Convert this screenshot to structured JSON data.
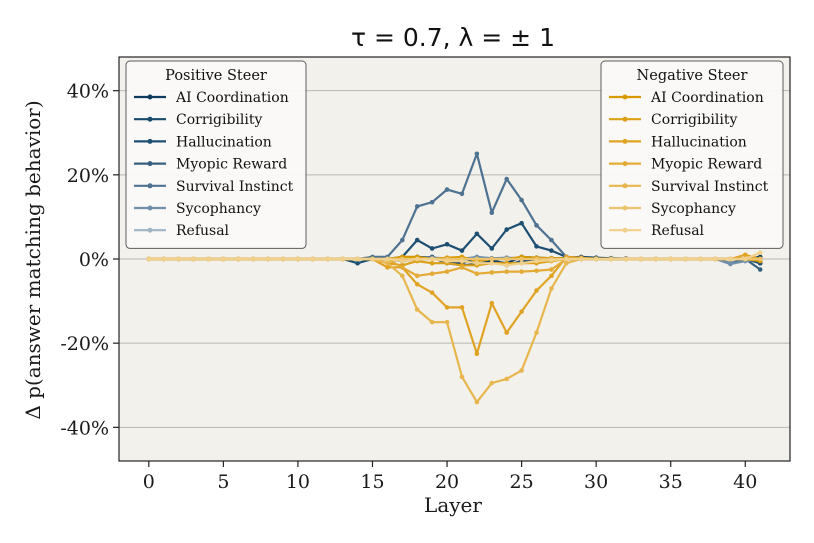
{
  "chart_data": {
    "type": "line",
    "title": "τ = 0.7, λ =  ± 1",
    "xlabel": "Layer",
    "ylabel": "Δ p(answer matching behavior)",
    "xlim": [
      -2,
      43
    ],
    "ylim": [
      -48,
      48
    ],
    "xticks": [
      0,
      5,
      10,
      15,
      20,
      25,
      30,
      35,
      40
    ],
    "yticks": [
      -40,
      -20,
      0,
      20,
      40
    ],
    "ytick_labels": [
      "-40%",
      "-20%",
      "0%",
      "20%",
      "40%"
    ],
    "grid": "horizontal",
    "x": [
      0,
      1,
      2,
      3,
      4,
      5,
      6,
      7,
      8,
      9,
      10,
      11,
      12,
      13,
      14,
      15,
      16,
      17,
      18,
      19,
      20,
      21,
      22,
      23,
      24,
      25,
      26,
      27,
      28,
      29,
      30,
      31,
      32,
      33,
      34,
      35,
      36,
      37,
      38,
      39,
      40,
      41
    ],
    "legends": [
      {
        "title": "Positive Steer",
        "position": "top-left"
      },
      {
        "title": "Negative Steer",
        "position": "top-right"
      }
    ],
    "series": [
      {
        "name": "AI Coordination",
        "group": "Positive Steer",
        "color": "#0d3b5e",
        "alpha": 1.0,
        "values": [
          0,
          0,
          0,
          0,
          0,
          0,
          0,
          0,
          0,
          0,
          0,
          0,
          0,
          0,
          0,
          0.2,
          0,
          -0.5,
          0.5,
          0.3,
          -1,
          -1.5,
          -1.2,
          -0.5,
          -1,
          0.5,
          0.3,
          0.2,
          0.2,
          0.2,
          0.1,
          0.1,
          0.1,
          0,
          0,
          0,
          0,
          0,
          0,
          0,
          0,
          0.5
        ]
      },
      {
        "name": "Corrigibility",
        "group": "Positive Steer",
        "color": "#184a6b",
        "alpha": 1.0,
        "values": [
          0,
          0,
          0,
          0,
          0,
          0,
          0,
          0,
          0,
          0,
          0,
          0,
          0,
          0,
          0,
          0,
          0,
          -0.5,
          0,
          0.5,
          -0.5,
          -1,
          0,
          0,
          -1.5,
          -0.5,
          0,
          0,
          0.3,
          0.5,
          0.3,
          0.2,
          0.1,
          0,
          0,
          0,
          0,
          0,
          0,
          0,
          0,
          -1
        ]
      },
      {
        "name": "Hallucination",
        "group": "Positive Steer",
        "color": "#1d4f73",
        "alpha": 1.0,
        "values": [
          0,
          0,
          0,
          0,
          0,
          0,
          0,
          0,
          0,
          0,
          0,
          0,
          0,
          0,
          -1,
          0,
          0,
          0.5,
          4.5,
          2.5,
          3.5,
          2,
          6,
          2.5,
          7,
          8.5,
          3,
          2,
          0.5,
          0.3,
          0.2,
          0.1,
          0.1,
          0,
          0,
          0,
          0,
          0,
          0,
          0,
          0,
          -1
        ]
      },
      {
        "name": "Myopic Reward",
        "group": "Positive Steer",
        "color": "#36607e",
        "alpha": 1.0,
        "values": [
          0,
          0,
          0,
          0,
          0,
          0,
          0,
          0,
          0,
          0,
          0,
          0,
          0,
          0,
          0,
          0,
          0,
          0,
          0,
          0,
          0,
          0,
          0,
          0,
          0,
          0,
          0,
          0,
          0,
          0,
          0,
          0,
          0,
          0,
          0,
          0,
          0,
          0,
          0,
          0,
          0,
          -2.5
        ]
      },
      {
        "name": "Survival Instinct",
        "group": "Positive Steer",
        "color": "#4e7291",
        "alpha": 1.0,
        "values": [
          0,
          0,
          0,
          0,
          0,
          0,
          0,
          0,
          0,
          0,
          0,
          0,
          0,
          0,
          0,
          0.5,
          0.5,
          4.5,
          12.5,
          13.5,
          16.5,
          15.5,
          25,
          11,
          19,
          14,
          8,
          4.5,
          0.5,
          0,
          0,
          0,
          0,
          0,
          0,
          0,
          0,
          0,
          0,
          -1,
          0,
          0
        ]
      },
      {
        "name": "Sycophancy",
        "group": "Positive Steer",
        "color": "#6f8fab",
        "alpha": 1.0,
        "values": [
          0,
          0,
          0,
          0,
          0,
          0,
          0,
          0,
          0,
          0,
          0,
          0,
          0,
          0,
          0,
          0,
          0,
          0,
          0.2,
          0.3,
          0.2,
          0,
          0.5,
          0.2,
          0.3,
          0.2,
          0,
          0,
          0,
          0,
          0,
          0,
          0,
          0,
          0,
          0,
          0,
          0,
          0,
          -1.2,
          -0.5,
          0
        ]
      },
      {
        "name": "Refusal",
        "group": "Positive Steer",
        "color": "#9fb4c7",
        "alpha": 1.0,
        "values": [
          0,
          0,
          0,
          0,
          0,
          0,
          0,
          0,
          0,
          0,
          0,
          0,
          0,
          0,
          0,
          0,
          0,
          0,
          0,
          0,
          0,
          0,
          0,
          0,
          0,
          0,
          0,
          0,
          0,
          0,
          0,
          0,
          0,
          0,
          0,
          0,
          0,
          0,
          0,
          0,
          0,
          0
        ]
      },
      {
        "name": "AI Coordination",
        "group": "Negative Steer",
        "color": "#d99a05",
        "alpha": 1.0,
        "values": [
          0,
          0,
          0,
          0,
          0,
          0,
          0,
          0,
          0,
          0,
          0,
          0,
          0,
          0,
          0,
          0,
          0,
          0.5,
          0.5,
          0,
          0.3,
          0.5,
          -0.5,
          0,
          0,
          0.5,
          0.3,
          0.2,
          0.2,
          0.2,
          0.1,
          0,
          0,
          0,
          0,
          0,
          0,
          0,
          0,
          0,
          0,
          -0.5
        ]
      },
      {
        "name": "Corrigibility",
        "group": "Negative Steer",
        "color": "#dca016",
        "alpha": 1.0,
        "values": [
          0,
          0,
          0,
          0,
          0,
          0,
          0,
          0,
          0,
          0,
          0,
          0,
          0,
          0,
          0,
          0,
          -1,
          -1.5,
          -0.5,
          -1,
          -1,
          -1.5,
          -1.5,
          -1,
          -1,
          -1,
          -1,
          -0.5,
          0,
          0,
          0,
          0,
          0,
          0,
          0,
          0,
          0,
          0,
          0,
          0,
          0,
          0
        ]
      },
      {
        "name": "Hallucination",
        "group": "Negative Steer",
        "color": "#e0a324",
        "alpha": 1.0,
        "values": [
          0,
          0,
          0,
          0,
          0,
          0,
          0,
          0,
          0,
          0,
          0,
          0,
          0,
          0,
          0,
          0,
          -2,
          -2,
          -6,
          -8,
          -11.5,
          -11.5,
          -22.5,
          -10.5,
          -17.5,
          -12.5,
          -7.5,
          -4,
          0.5,
          0.3,
          0,
          0,
          0,
          0,
          0,
          0,
          0,
          0,
          0,
          0,
          1,
          0
        ]
      },
      {
        "name": "Myopic Reward",
        "group": "Negative Steer",
        "color": "#e3aa35",
        "alpha": 1.0,
        "values": [
          0,
          0,
          0,
          0,
          0,
          0,
          0,
          0,
          0,
          0,
          0,
          0,
          0,
          0,
          0,
          0,
          0,
          -2,
          -4,
          -3.5,
          -3,
          -2,
          -3.5,
          -3.2,
          -3,
          -3,
          -2.8,
          -2.5,
          0,
          0,
          0,
          0,
          0,
          0,
          0,
          0,
          0,
          0,
          0,
          0,
          0,
          0
        ]
      },
      {
        "name": "Survival Instinct",
        "group": "Negative Steer",
        "color": "#e8b64e",
        "alpha": 1.0,
        "values": [
          0,
          0,
          0,
          0,
          0,
          0,
          0,
          0,
          0,
          0,
          0,
          0,
          0,
          0,
          0,
          0,
          -1,
          -4,
          -12,
          -15,
          -15,
          -28,
          -34,
          -29.5,
          -28.5,
          -26.5,
          -17.5,
          -7,
          -1,
          0,
          0,
          0,
          0,
          0,
          0,
          0,
          0,
          0,
          0,
          0,
          0,
          0
        ]
      },
      {
        "name": "Sycophancy",
        "group": "Negative Steer",
        "color": "#ecc36c",
        "alpha": 1.0,
        "values": [
          0,
          0,
          0,
          0,
          0,
          0,
          0,
          0,
          0,
          0,
          0,
          0,
          0,
          0,
          0,
          0,
          0,
          0,
          0,
          0,
          0,
          0,
          0,
          0,
          0,
          0,
          0,
          0,
          0,
          0,
          0,
          0,
          0,
          0,
          0,
          0,
          0,
          0,
          0,
          0,
          0,
          0
        ]
      },
      {
        "name": "Refusal",
        "group": "Negative Steer",
        "color": "#f0d08a",
        "alpha": 1.0,
        "values": [
          0,
          0,
          0,
          0,
          0,
          0,
          0,
          0,
          0,
          0,
          0,
          0,
          0,
          0,
          0,
          0,
          0,
          -0.5,
          0,
          0,
          -0.5,
          -0.5,
          -1,
          -1,
          -1.5,
          -1,
          -0.5,
          -0.3,
          0,
          0,
          0,
          0,
          0,
          0,
          0,
          0,
          0,
          0,
          0,
          0,
          0,
          1.5
        ]
      }
    ]
  }
}
